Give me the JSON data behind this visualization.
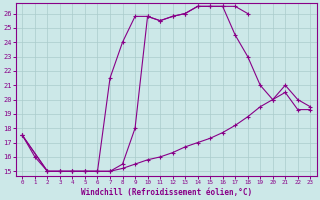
{
  "xlabel": "Windchill (Refroidissement éolien,°C)",
  "xlim": [
    -0.5,
    23.5
  ],
  "ylim": [
    14.7,
    26.7
  ],
  "yticks": [
    15,
    16,
    17,
    18,
    19,
    20,
    21,
    22,
    23,
    24,
    25,
    26
  ],
  "xticks": [
    0,
    1,
    2,
    3,
    4,
    5,
    6,
    7,
    8,
    9,
    10,
    11,
    12,
    13,
    14,
    15,
    16,
    17,
    18,
    19,
    20,
    21,
    22,
    23
  ],
  "bg_color": "#cce8e8",
  "line_color": "#880088",
  "grid_color": "#aacccc",
  "lines": [
    {
      "x": [
        0,
        1,
        2,
        3,
        4,
        5,
        6,
        7,
        8,
        9,
        10,
        11,
        12,
        13,
        14,
        15,
        16,
        17,
        18
      ],
      "y": [
        17.5,
        16.0,
        15.0,
        15.0,
        15.0,
        15.0,
        15.0,
        21.5,
        24.0,
        25.8,
        25.8,
        25.5,
        25.8,
        26.0,
        26.5,
        26.5,
        26.5,
        26.5,
        26.0
      ]
    },
    {
      "x": [
        0,
        2,
        3,
        4,
        5,
        6,
        7,
        8,
        9,
        10,
        11,
        12,
        13,
        14,
        15,
        16,
        17,
        18,
        19,
        20,
        21,
        22,
        23
      ],
      "y": [
        17.5,
        15.0,
        15.0,
        15.0,
        15.0,
        15.0,
        15.0,
        15.5,
        18.0,
        25.8,
        25.5,
        25.8,
        26.0,
        26.5,
        26.5,
        26.5,
        24.5,
        23.0,
        21.0,
        20.0,
        21.0,
        20.0,
        19.5
      ]
    },
    {
      "x": [
        0,
        2,
        3,
        4,
        5,
        6,
        7,
        8,
        9,
        10,
        11,
        12,
        13,
        14,
        15,
        16,
        17,
        18,
        19,
        20,
        21,
        22,
        23
      ],
      "y": [
        17.5,
        15.0,
        15.0,
        15.0,
        15.0,
        15.0,
        15.0,
        15.2,
        15.5,
        15.8,
        16.0,
        16.3,
        16.7,
        17.0,
        17.3,
        17.7,
        18.2,
        18.8,
        19.5,
        20.0,
        20.5,
        19.3,
        19.3
      ]
    }
  ]
}
